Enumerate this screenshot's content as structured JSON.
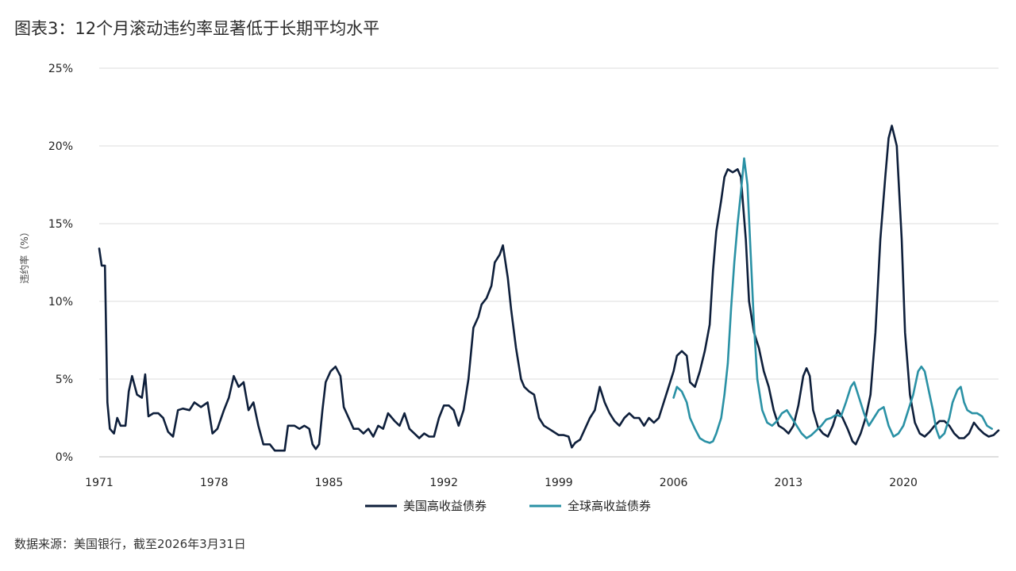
{
  "title": "图表3：12个月滚动违约率显著低于长期平均水平",
  "source": "数据来源：美国银行，截至2026年3月31日",
  "colors": {
    "us_series": "#0e1f3b",
    "global_series": "#2a91a5",
    "grid": "#dcdcdc"
  },
  "chart_data": {
    "type": "line",
    "title": "图表3：12个月滚动违约率显著低于长期平均水平",
    "xlabel": "",
    "ylabel": "违约率（%）",
    "xlim": [
      1971,
      2025.8
    ],
    "ylim": [
      0,
      25
    ],
    "x_ticks": [
      1971,
      1978,
      1985,
      1992,
      1999,
      2006,
      2013,
      2020
    ],
    "y_ticks": [
      0,
      5,
      10,
      15,
      20,
      25
    ],
    "y_tick_labels": [
      "0%",
      "5%",
      "10%",
      "15%",
      "20%",
      "25%"
    ],
    "grid": "horizontal",
    "legend_position": "bottom-center",
    "series": [
      {
        "name": "美国高收益债券",
        "color": "#0e1f3b",
        "points": [
          [
            1971.0,
            13.4
          ],
          [
            1971.15,
            12.3
          ],
          [
            1971.35,
            12.3
          ],
          [
            1971.5,
            3.5
          ],
          [
            1971.65,
            1.8
          ],
          [
            1971.9,
            1.5
          ],
          [
            1972.1,
            2.5
          ],
          [
            1972.3,
            2.0
          ],
          [
            1972.6,
            2.0
          ],
          [
            1972.8,
            4.2
          ],
          [
            1973.0,
            5.2
          ],
          [
            1973.3,
            4.0
          ],
          [
            1973.6,
            3.8
          ],
          [
            1973.8,
            5.3
          ],
          [
            1974.0,
            2.6
          ],
          [
            1974.3,
            2.8
          ],
          [
            1974.6,
            2.8
          ],
          [
            1974.9,
            2.5
          ],
          [
            1975.2,
            1.6
          ],
          [
            1975.5,
            1.3
          ],
          [
            1975.8,
            3.0
          ],
          [
            1976.1,
            3.1
          ],
          [
            1976.5,
            3.0
          ],
          [
            1976.8,
            3.5
          ],
          [
            1977.2,
            3.2
          ],
          [
            1977.6,
            3.5
          ],
          [
            1977.9,
            1.5
          ],
          [
            1978.2,
            1.8
          ],
          [
            1978.6,
            3.0
          ],
          [
            1978.9,
            3.8
          ],
          [
            1979.2,
            5.2
          ],
          [
            1979.5,
            4.5
          ],
          [
            1979.8,
            4.8
          ],
          [
            1980.1,
            3.0
          ],
          [
            1980.4,
            3.5
          ],
          [
            1980.7,
            2.0
          ],
          [
            1981.0,
            0.8
          ],
          [
            1981.4,
            0.8
          ],
          [
            1981.7,
            0.4
          ],
          [
            1982.0,
            0.4
          ],
          [
            1982.3,
            0.4
          ],
          [
            1982.5,
            2.0
          ],
          [
            1982.9,
            2.0
          ],
          [
            1983.2,
            1.8
          ],
          [
            1983.5,
            2.0
          ],
          [
            1983.8,
            1.8
          ],
          [
            1984.0,
            0.8
          ],
          [
            1984.2,
            0.5
          ],
          [
            1984.4,
            0.8
          ],
          [
            1984.6,
            3.0
          ],
          [
            1984.8,
            4.8
          ],
          [
            1985.1,
            5.5
          ],
          [
            1985.4,
            5.8
          ],
          [
            1985.7,
            5.2
          ],
          [
            1985.9,
            3.2
          ],
          [
            1986.2,
            2.5
          ],
          [
            1986.5,
            1.8
          ],
          [
            1986.8,
            1.8
          ],
          [
            1987.1,
            1.5
          ],
          [
            1987.4,
            1.8
          ],
          [
            1987.7,
            1.3
          ],
          [
            1988.0,
            2.0
          ],
          [
            1988.3,
            1.8
          ],
          [
            1988.6,
            2.8
          ],
          [
            1989.0,
            2.3
          ],
          [
            1989.3,
            2.0
          ],
          [
            1989.6,
            2.8
          ],
          [
            1989.9,
            1.8
          ],
          [
            1990.2,
            1.5
          ],
          [
            1990.5,
            1.2
          ],
          [
            1990.8,
            1.5
          ],
          [
            1991.1,
            1.3
          ],
          [
            1991.4,
            1.3
          ],
          [
            1991.7,
            2.5
          ],
          [
            1992.0,
            3.3
          ],
          [
            1992.3,
            3.3
          ],
          [
            1992.6,
            3.0
          ],
          [
            1992.9,
            2.0
          ],
          [
            1993.2,
            3.0
          ],
          [
            1993.5,
            5.0
          ],
          [
            1993.8,
            8.3
          ],
          [
            1994.1,
            9.0
          ],
          [
            1994.3,
            9.8
          ],
          [
            1994.6,
            10.2
          ],
          [
            1994.9,
            11.0
          ],
          [
            1995.1,
            12.5
          ],
          [
            1995.4,
            13.0
          ],
          [
            1995.6,
            13.6
          ],
          [
            1995.9,
            11.5
          ],
          [
            1996.1,
            9.5
          ],
          [
            1996.4,
            7.0
          ],
          [
            1996.7,
            5.0
          ],
          [
            1996.9,
            4.5
          ],
          [
            1997.2,
            4.2
          ],
          [
            1997.5,
            4.0
          ],
          [
            1997.8,
            2.5
          ],
          [
            1998.1,
            2.0
          ],
          [
            1998.4,
            1.8
          ],
          [
            1998.7,
            1.6
          ],
          [
            1999.0,
            1.4
          ],
          [
            1999.3,
            1.4
          ],
          [
            1999.6,
            1.3
          ],
          [
            1999.8,
            0.6
          ],
          [
            2000.0,
            0.9
          ],
          [
            2000.3,
            1.1
          ],
          [
            2000.6,
            1.8
          ],
          [
            2000.9,
            2.5
          ],
          [
            2001.2,
            3.0
          ],
          [
            2001.5,
            4.5
          ],
          [
            2001.8,
            3.5
          ],
          [
            2002.1,
            2.8
          ],
          [
            2002.4,
            2.3
          ],
          [
            2002.7,
            2.0
          ],
          [
            2003.0,
            2.5
          ],
          [
            2003.3,
            2.8
          ],
          [
            2003.6,
            2.5
          ],
          [
            2003.9,
            2.5
          ],
          [
            2004.2,
            2.0
          ],
          [
            2004.5,
            2.5
          ],
          [
            2004.8,
            2.2
          ],
          [
            2005.1,
            2.5
          ],
          [
            2005.4,
            3.5
          ],
          [
            2005.7,
            4.5
          ],
          [
            2006.0,
            5.5
          ],
          [
            2006.2,
            6.5
          ],
          [
            2006.5,
            6.8
          ],
          [
            2006.8,
            6.5
          ],
          [
            2007.0,
            4.8
          ],
          [
            2007.3,
            4.5
          ],
          [
            2007.6,
            5.5
          ],
          [
            2007.9,
            6.8
          ],
          [
            2008.2,
            8.5
          ],
          [
            2008.4,
            12.0
          ],
          [
            2008.6,
            14.5
          ],
          [
            2008.9,
            16.5
          ],
          [
            2009.1,
            18.0
          ],
          [
            2009.3,
            18.5
          ],
          [
            2009.6,
            18.3
          ],
          [
            2009.9,
            18.5
          ],
          [
            2010.1,
            18.0
          ],
          [
            2010.4,
            14.0
          ],
          [
            2010.6,
            10.0
          ],
          [
            2010.9,
            8.0
          ],
          [
            2011.2,
            7.0
          ],
          [
            2011.5,
            5.5
          ],
          [
            2011.8,
            4.5
          ],
          [
            2012.1,
            3.0
          ],
          [
            2012.4,
            2.0
          ],
          [
            2012.7,
            1.8
          ],
          [
            2013.0,
            1.5
          ],
          [
            2013.3,
            2.0
          ],
          [
            2013.6,
            3.3
          ],
          [
            2013.9,
            5.2
          ],
          [
            2014.1,
            5.7
          ],
          [
            2014.3,
            5.2
          ],
          [
            2014.5,
            3.0
          ],
          [
            2014.8,
            1.9
          ],
          [
            2015.1,
            1.5
          ],
          [
            2015.4,
            1.3
          ],
          [
            2015.7,
            2.0
          ],
          [
            2016.0,
            3.0
          ],
          [
            2016.3,
            2.5
          ],
          [
            2016.6,
            1.8
          ],
          [
            2016.9,
            1.0
          ],
          [
            2017.1,
            0.8
          ],
          [
            2017.4,
            1.5
          ],
          [
            2017.7,
            2.5
          ],
          [
            2018.0,
            4.0
          ],
          [
            2018.3,
            8.0
          ],
          [
            2018.6,
            14.0
          ],
          [
            2018.9,
            18.0
          ],
          [
            2019.1,
            20.5
          ],
          [
            2019.3,
            21.3
          ],
          [
            2019.6,
            20.0
          ],
          [
            2019.9,
            14.0
          ],
          [
            2020.1,
            8.0
          ],
          [
            2020.4,
            4.0
          ],
          [
            2020.7,
            2.2
          ],
          [
            2021.0,
            1.5
          ],
          [
            2021.3,
            1.3
          ],
          [
            2021.6,
            1.6
          ],
          [
            2021.9,
            2.0
          ],
          [
            2022.2,
            2.3
          ],
          [
            2022.5,
            2.3
          ],
          [
            2022.8,
            2.0
          ],
          [
            2023.1,
            1.5
          ],
          [
            2023.4,
            1.2
          ],
          [
            2023.7,
            1.2
          ],
          [
            2024.0,
            1.5
          ],
          [
            2024.3,
            2.2
          ],
          [
            2024.6,
            1.8
          ],
          [
            2024.9,
            1.5
          ],
          [
            2025.2,
            1.3
          ],
          [
            2025.5,
            1.4
          ],
          [
            2025.8,
            1.7
          ]
        ]
      },
      {
        "name": "全球高收益债券",
        "color": "#2a91a5",
        "points": [
          [
            2006.0,
            3.8
          ],
          [
            2006.2,
            4.5
          ],
          [
            2006.5,
            4.2
          ],
          [
            2006.8,
            3.5
          ],
          [
            2007.0,
            2.5
          ],
          [
            2007.3,
            1.8
          ],
          [
            2007.6,
            1.2
          ],
          [
            2007.9,
            1.0
          ],
          [
            2008.2,
            0.9
          ],
          [
            2008.4,
            1.0
          ],
          [
            2008.6,
            1.5
          ],
          [
            2008.9,
            2.5
          ],
          [
            2009.1,
            4.0
          ],
          [
            2009.3,
            6.0
          ],
          [
            2009.5,
            9.5
          ],
          [
            2009.7,
            12.5
          ],
          [
            2009.9,
            15.0
          ],
          [
            2010.1,
            17.0
          ],
          [
            2010.3,
            19.2
          ],
          [
            2010.5,
            17.5
          ],
          [
            2010.7,
            13.0
          ],
          [
            2010.9,
            8.5
          ],
          [
            2011.1,
            5.0
          ],
          [
            2011.4,
            3.0
          ],
          [
            2011.7,
            2.2
          ],
          [
            2012.0,
            2.0
          ],
          [
            2012.3,
            2.3
          ],
          [
            2012.6,
            2.8
          ],
          [
            2012.9,
            3.0
          ],
          [
            2013.2,
            2.5
          ],
          [
            2013.5,
            2.0
          ],
          [
            2013.8,
            1.5
          ],
          [
            2014.1,
            1.2
          ],
          [
            2014.4,
            1.4
          ],
          [
            2014.7,
            1.7
          ],
          [
            2015.0,
            2.0
          ],
          [
            2015.3,
            2.4
          ],
          [
            2015.6,
            2.5
          ],
          [
            2015.9,
            2.7
          ],
          [
            2016.2,
            2.6
          ],
          [
            2016.5,
            3.5
          ],
          [
            2016.8,
            4.5
          ],
          [
            2017.0,
            4.8
          ],
          [
            2017.3,
            3.8
          ],
          [
            2017.6,
            2.8
          ],
          [
            2017.9,
            2.0
          ],
          [
            2018.2,
            2.5
          ],
          [
            2018.5,
            3.0
          ],
          [
            2018.8,
            3.2
          ],
          [
            2019.1,
            2.0
          ],
          [
            2019.4,
            1.3
          ],
          [
            2019.7,
            1.5
          ],
          [
            2020.0,
            2.0
          ],
          [
            2020.3,
            3.0
          ],
          [
            2020.6,
            4.0
          ],
          [
            2020.9,
            5.5
          ],
          [
            2021.1,
            5.8
          ],
          [
            2021.3,
            5.5
          ],
          [
            2021.5,
            4.5
          ],
          [
            2021.8,
            3.0
          ],
          [
            2022.0,
            1.8
          ],
          [
            2022.2,
            1.2
          ],
          [
            2022.5,
            1.5
          ],
          [
            2022.8,
            2.5
          ],
          [
            2023.0,
            3.5
          ],
          [
            2023.3,
            4.3
          ],
          [
            2023.5,
            4.5
          ],
          [
            2023.7,
            3.5
          ],
          [
            2023.9,
            3.0
          ],
          [
            2024.2,
            2.8
          ],
          [
            2024.5,
            2.8
          ],
          [
            2024.8,
            2.6
          ],
          [
            2025.1,
            2.0
          ],
          [
            2025.4,
            1.8
          ]
        ]
      }
    ]
  }
}
